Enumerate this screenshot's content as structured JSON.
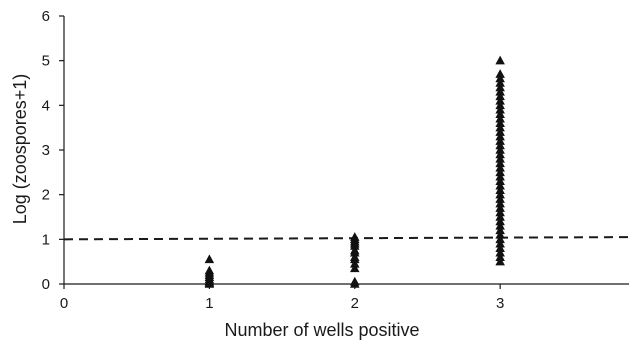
{
  "chart_data": {
    "type": "scatter",
    "title": "",
    "xlabel": "Number of wells positive",
    "ylabel": "Log (zoospores+1)",
    "xlim": [
      0,
      3.9
    ],
    "ylim": [
      0,
      6
    ],
    "xticks": [
      0,
      1,
      2,
      3
    ],
    "yticks": [
      0,
      1,
      2,
      3,
      4,
      5,
      6
    ],
    "grid": false,
    "legend": "none",
    "marker": "triangle",
    "marker_color": "#111111",
    "threshold_line": {
      "y_start": 1.0,
      "y_end": 1.05,
      "style": "dashed"
    },
    "series": [
      {
        "x": 1,
        "values": [
          0.55,
          0.3,
          0.25,
          0.2,
          0.15,
          0.1,
          0.05,
          0.02,
          0.0
        ]
      },
      {
        "x": 2,
        "values": [
          1.05,
          1.0,
          0.95,
          0.9,
          0.85,
          0.75,
          0.7,
          0.6,
          0.55,
          0.45,
          0.35,
          0.05,
          0.0
        ]
      },
      {
        "x": 3,
        "values": [
          5.0,
          4.7,
          4.6,
          4.5,
          4.4,
          4.3,
          4.2,
          4.1,
          4.0,
          3.9,
          3.8,
          3.7,
          3.6,
          3.5,
          3.4,
          3.3,
          3.2,
          3.1,
          3.0,
          2.9,
          2.8,
          2.7,
          2.6,
          2.5,
          2.4,
          2.3,
          2.2,
          2.1,
          2.0,
          1.9,
          1.8,
          1.7,
          1.6,
          1.5,
          1.4,
          1.3,
          1.2,
          1.1,
          1.0,
          0.9,
          0.8,
          0.7,
          0.6,
          0.5
        ]
      }
    ]
  }
}
